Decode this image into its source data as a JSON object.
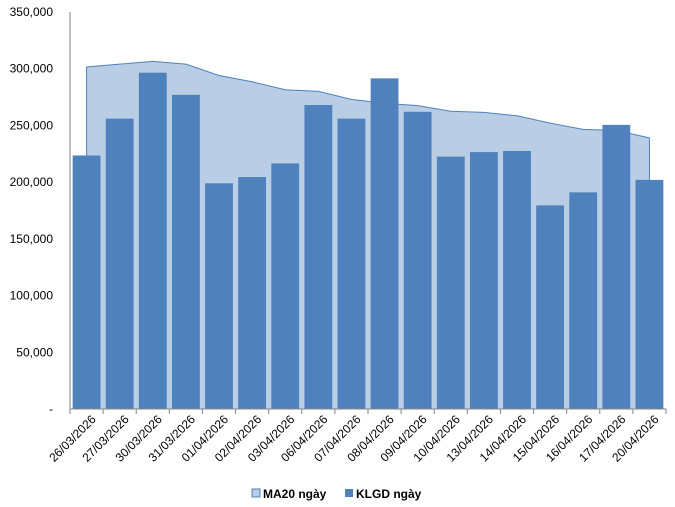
{
  "chart_data": {
    "type": "bar",
    "categories": [
      "26/03/2026",
      "27/03/2026",
      "30/03/2026",
      "31/03/2026",
      "01/04/2026",
      "02/04/2026",
      "03/04/2026",
      "06/04/2026",
      "07/04/2026",
      "08/04/2026",
      "09/04/2026",
      "10/04/2026",
      "13/04/2026",
      "14/04/2026",
      "15/04/2026",
      "16/04/2026",
      "17/04/2026",
      "20/04/2026"
    ],
    "series": [
      {
        "name": "MA20 ngày",
        "kind": "area",
        "color": "#b9cde5",
        "stroke": "#4f81bd",
        "values": [
          301500,
          304000,
          306500,
          304000,
          294000,
          288500,
          281500,
          280000,
          273000,
          269500,
          267500,
          262500,
          261500,
          258500,
          252000,
          246500,
          245500,
          239000
        ]
      },
      {
        "name": "KLGD ngày",
        "kind": "bar",
        "color": "#4f81bd",
        "values": [
          223500,
          256000,
          296500,
          277000,
          199000,
          204500,
          216500,
          268000,
          256000,
          291500,
          262000,
          222500,
          226500,
          227500,
          179500,
          191000,
          250500,
          202000
        ]
      }
    ],
    "y_ticks": [
      "-",
      "50,000",
      "100,000",
      "150,000",
      "200,000",
      "250,000",
      "300,000",
      "350,000"
    ],
    "ylim": [
      0,
      350000
    ],
    "grid": false,
    "legend_position": "bottom"
  }
}
